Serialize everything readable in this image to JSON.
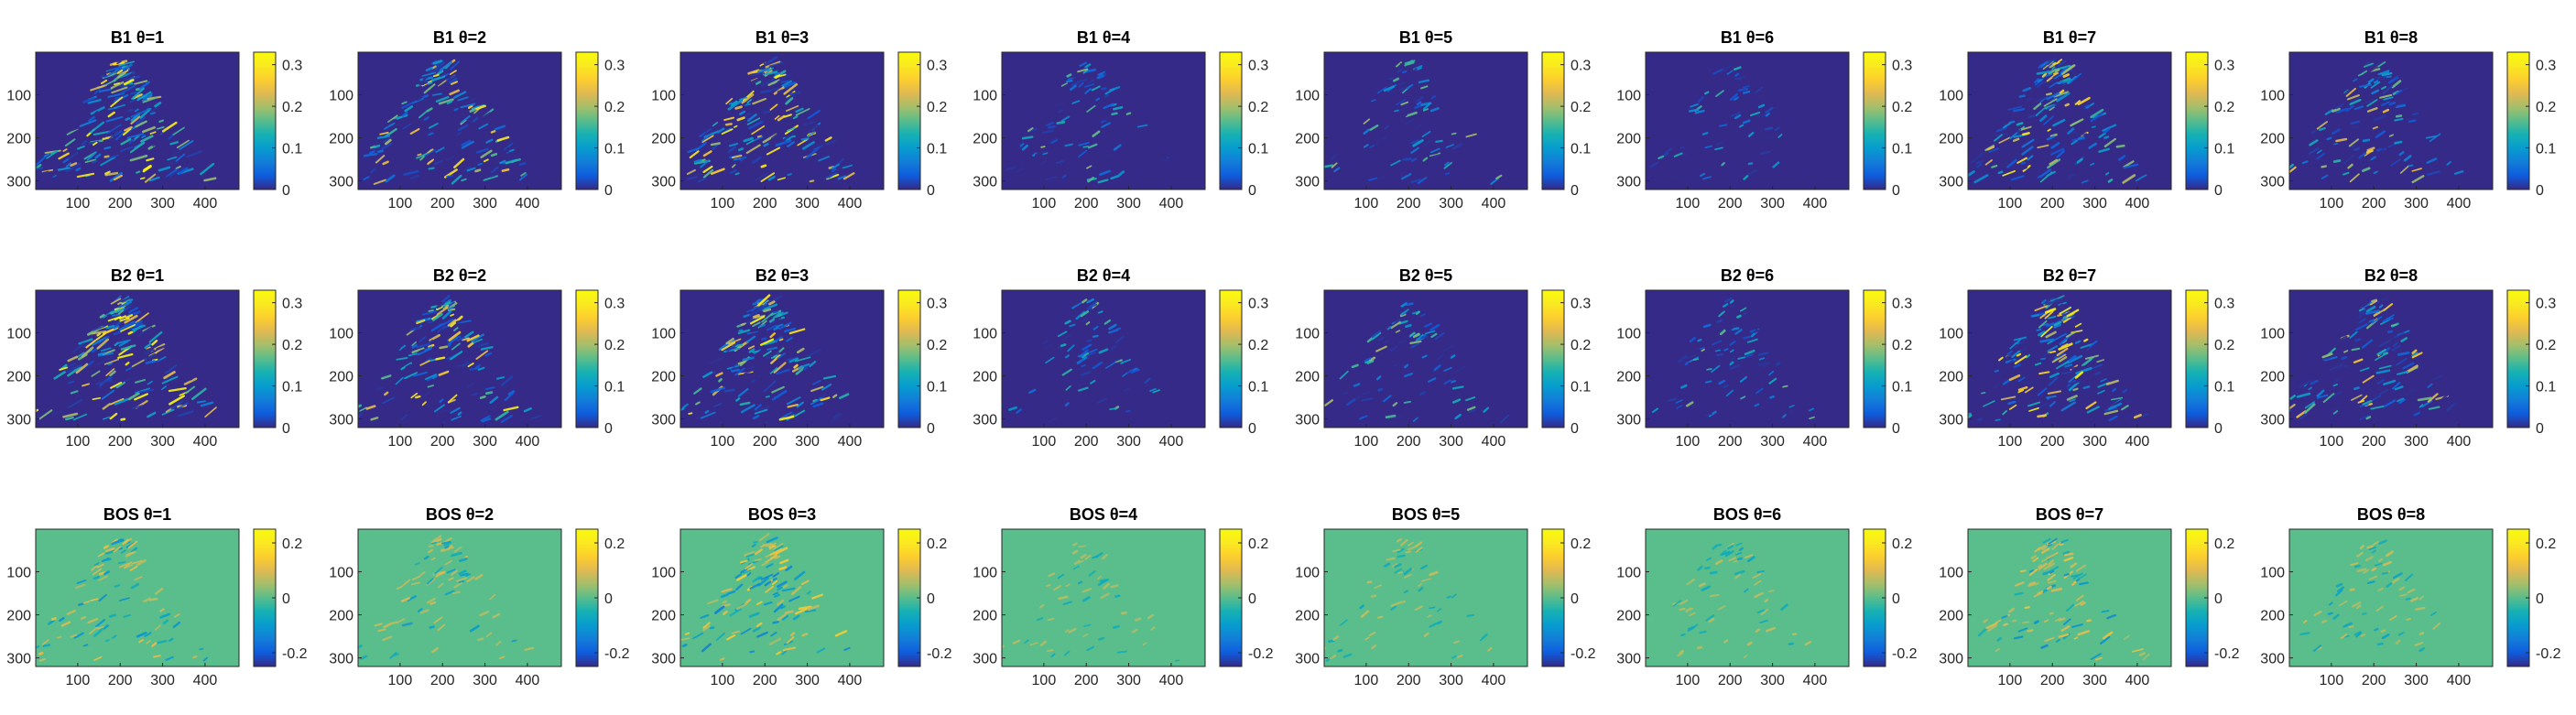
{
  "chart_data": {
    "type": "heatmap",
    "colormap": "parula",
    "grid": false,
    "layout": "3 rows x 8 columns of image panels, each with a vertical colorbar on its right",
    "rows": [
      {
        "name": "B1",
        "titles": [
          "B1 θ=1",
          "B1 θ=2",
          "B1 θ=3",
          "B1 θ=4",
          "B1 θ=5",
          "B1 θ=6",
          "B1 θ=7",
          "B1 θ=8"
        ],
        "clim": [
          0,
          0.33
        ],
        "colorbar_ticks": [
          0,
          0.1,
          0.2,
          0.3
        ],
        "colorbar_tick_labels": [
          "0",
          "0.1",
          "0.2",
          "0.3"
        ],
        "background_value": 0,
        "content_level": [
          1.0,
          0.75,
          0.85,
          0.3,
          0.35,
          0.2,
          0.8,
          0.55
        ]
      },
      {
        "name": "B2",
        "titles": [
          "B2 θ=1",
          "B2 θ=2",
          "B2 θ=3",
          "B2 θ=4",
          "B2 θ=5",
          "B2 θ=6",
          "B2 θ=7",
          "B2 θ=8"
        ],
        "clim": [
          0,
          0.33
        ],
        "colorbar_ticks": [
          0,
          0.1,
          0.2,
          0.3
        ],
        "colorbar_tick_labels": [
          "0",
          "0.1",
          "0.2",
          "0.3"
        ],
        "background_value": 0,
        "content_level": [
          1.0,
          0.75,
          0.85,
          0.3,
          0.35,
          0.3,
          0.85,
          0.6
        ]
      },
      {
        "name": "BOS",
        "titles": [
          "BOS θ=1",
          "BOS θ=2",
          "BOS θ=3",
          "BOS θ=4",
          "BOS θ=5",
          "BOS θ=6",
          "BOS θ=7",
          "BOS θ=8"
        ],
        "clim": [
          -0.25,
          0.25
        ],
        "colorbar_ticks": [
          -0.2,
          0,
          0.2
        ],
        "colorbar_tick_labels": [
          "-0.2",
          "0",
          "0.2"
        ],
        "background_value": 0,
        "content_level": [
          0.35,
          0.25,
          0.5,
          0.1,
          0.15,
          0.15,
          0.4,
          0.2
        ]
      }
    ],
    "x_axis": {
      "range": [
        1,
        480
      ],
      "ticks": [
        100,
        200,
        300,
        400
      ],
      "tick_labels": [
        "100",
        "200",
        "300",
        "400"
      ]
    },
    "y_axis": {
      "range": [
        1,
        320
      ],
      "reversed": true,
      "ticks": [
        100,
        200,
        300
      ],
      "tick_labels": [
        "100",
        "200",
        "300"
      ]
    }
  }
}
